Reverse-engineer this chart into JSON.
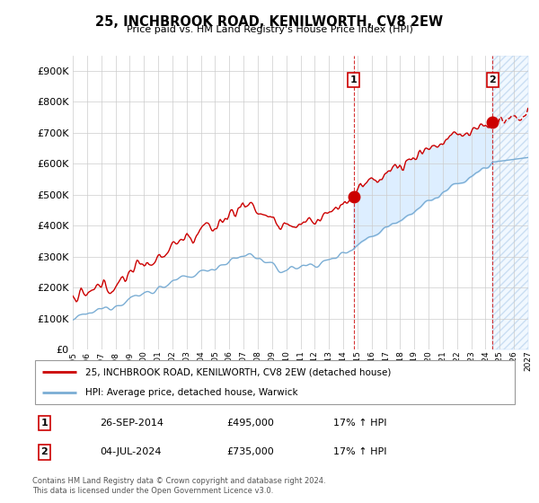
{
  "title": "25, INCHBROOK ROAD, KENILWORTH, CV8 2EW",
  "subtitle": "Price paid vs. HM Land Registry's House Price Index (HPI)",
  "legend_line1": "25, INCHBROOK ROAD, KENILWORTH, CV8 2EW (detached house)",
  "legend_line2": "HPI: Average price, detached house, Warwick",
  "annotation1_label": "1",
  "annotation1_date": "26-SEP-2014",
  "annotation1_price": 495000,
  "annotation1_hpi": "17% ↑ HPI",
  "annotation2_label": "2",
  "annotation2_date": "04-JUL-2024",
  "annotation2_price": 735000,
  "annotation2_hpi": "17% ↑ HPI",
  "footer1": "Contains HM Land Registry data © Crown copyright and database right 2024.",
  "footer2": "This data is licensed under the Open Government Licence v3.0.",
  "red_color": "#cc0000",
  "blue_color": "#7aadd4",
  "background_color": "#ffffff",
  "grid_color": "#cccccc",
  "fill_color": "#ddeeff",
  "ylim": [
    0,
    950000
  ],
  "yticks": [
    0,
    100000,
    200000,
    300000,
    400000,
    500000,
    600000,
    700000,
    800000,
    900000
  ],
  "x_start_year": 1995,
  "x_end_year": 2027,
  "sale1_year": 2014.74,
  "sale1_price": 495000,
  "sale2_year": 2024.5,
  "sale2_price": 735000
}
